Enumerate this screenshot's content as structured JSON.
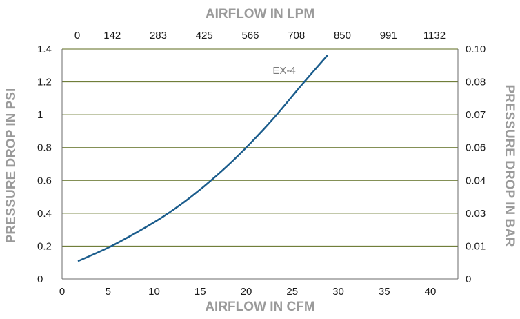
{
  "chart_data": {
    "type": "line",
    "title": "",
    "xlabel": "AIRFLOW IN CFM",
    "ylabel": "PRESSURE DROP IN PSI",
    "x2label": "AIRFLOW IN LPM",
    "y2label": "PRESSURE DROP IN BAR",
    "xlim": [
      0,
      43
    ],
    "ylim": [
      0,
      1.4
    ],
    "x_ticks": [
      "0",
      "5",
      "10",
      "15",
      "20",
      "25",
      "30",
      "35",
      "40"
    ],
    "x2_ticks": [
      "0",
      "142",
      "283",
      "425",
      "566",
      "708",
      "850",
      "991",
      "1132"
    ],
    "y_ticks": [
      "0",
      "0.2",
      "0.4",
      "0.6",
      "0.8",
      "1",
      "1.2",
      "1.4"
    ],
    "y2_ticks": [
      "0",
      "0.01",
      "0.03",
      "0.04",
      "0.06",
      "0.07",
      "0.08",
      "0.10"
    ],
    "grid": "horizontal",
    "series": [
      {
        "name": "EX-4",
        "color": "#1a5c8c",
        "x": [
          1.8,
          5,
          8,
          11,
          14,
          17,
          20,
          23,
          26,
          28.8
        ],
        "y": [
          0.11,
          0.19,
          0.28,
          0.38,
          0.5,
          0.64,
          0.8,
          0.98,
          1.18,
          1.36
        ]
      }
    ]
  }
}
